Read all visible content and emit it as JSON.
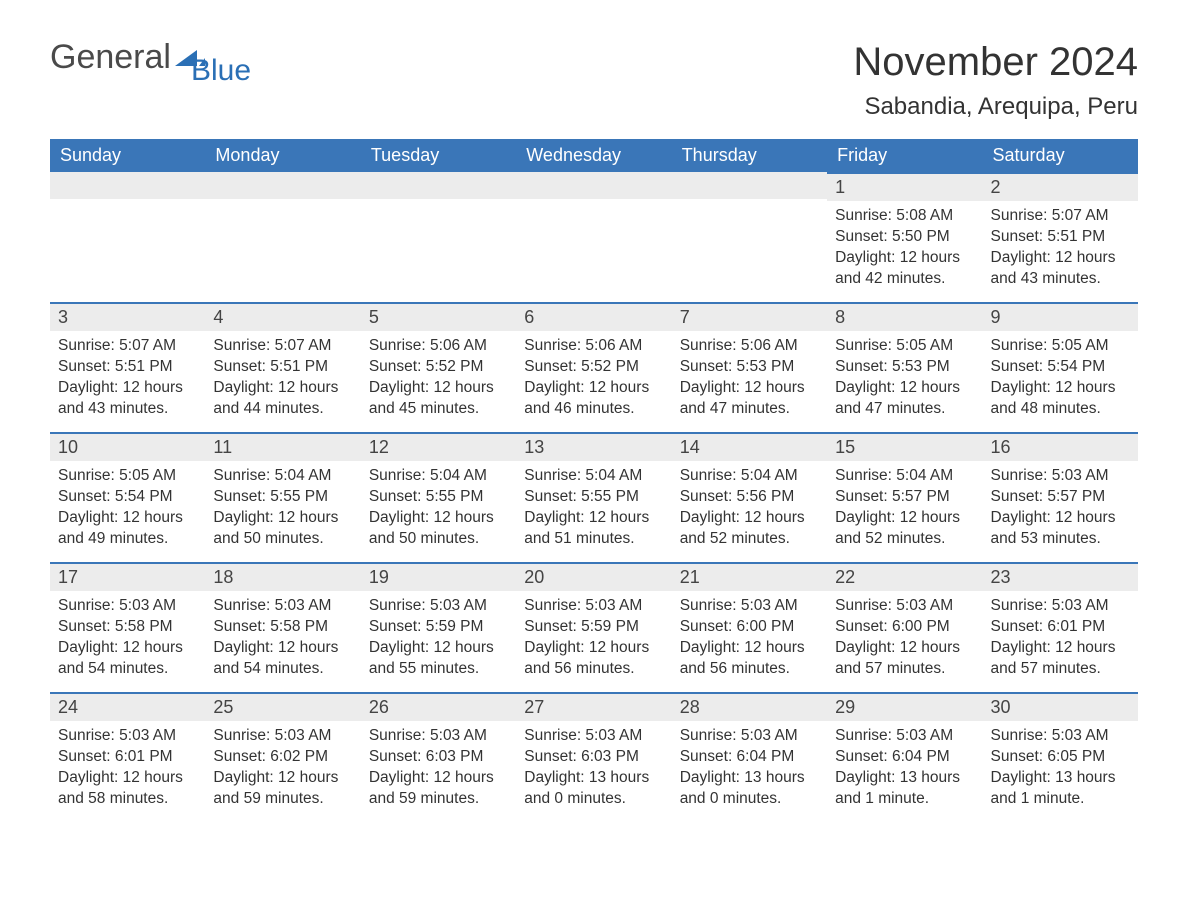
{
  "logo": {
    "general": "General",
    "blue": "Blue"
  },
  "header": {
    "month_title": "November 2024",
    "location": "Sabandia, Arequipa, Peru"
  },
  "colors": {
    "brand_blue": "#3a76b8",
    "header_row_bg": "#ececec",
    "text": "#333333",
    "bg": "#ffffff"
  },
  "weekday_labels": [
    "Sunday",
    "Monday",
    "Tuesday",
    "Wednesday",
    "Thursday",
    "Friday",
    "Saturday"
  ],
  "weeks": [
    [
      null,
      null,
      null,
      null,
      null,
      {
        "day": "1",
        "sunrise": "Sunrise: 5:08 AM",
        "sunset": "Sunset: 5:50 PM",
        "daylight": "Daylight: 12 hours and 42 minutes."
      },
      {
        "day": "2",
        "sunrise": "Sunrise: 5:07 AM",
        "sunset": "Sunset: 5:51 PM",
        "daylight": "Daylight: 12 hours and 43 minutes."
      }
    ],
    [
      {
        "day": "3",
        "sunrise": "Sunrise: 5:07 AM",
        "sunset": "Sunset: 5:51 PM",
        "daylight": "Daylight: 12 hours and 43 minutes."
      },
      {
        "day": "4",
        "sunrise": "Sunrise: 5:07 AM",
        "sunset": "Sunset: 5:51 PM",
        "daylight": "Daylight: 12 hours and 44 minutes."
      },
      {
        "day": "5",
        "sunrise": "Sunrise: 5:06 AM",
        "sunset": "Sunset: 5:52 PM",
        "daylight": "Daylight: 12 hours and 45 minutes."
      },
      {
        "day": "6",
        "sunrise": "Sunrise: 5:06 AM",
        "sunset": "Sunset: 5:52 PM",
        "daylight": "Daylight: 12 hours and 46 minutes."
      },
      {
        "day": "7",
        "sunrise": "Sunrise: 5:06 AM",
        "sunset": "Sunset: 5:53 PM",
        "daylight": "Daylight: 12 hours and 47 minutes."
      },
      {
        "day": "8",
        "sunrise": "Sunrise: 5:05 AM",
        "sunset": "Sunset: 5:53 PM",
        "daylight": "Daylight: 12 hours and 47 minutes."
      },
      {
        "day": "9",
        "sunrise": "Sunrise: 5:05 AM",
        "sunset": "Sunset: 5:54 PM",
        "daylight": "Daylight: 12 hours and 48 minutes."
      }
    ],
    [
      {
        "day": "10",
        "sunrise": "Sunrise: 5:05 AM",
        "sunset": "Sunset: 5:54 PM",
        "daylight": "Daylight: 12 hours and 49 minutes."
      },
      {
        "day": "11",
        "sunrise": "Sunrise: 5:04 AM",
        "sunset": "Sunset: 5:55 PM",
        "daylight": "Daylight: 12 hours and 50 minutes."
      },
      {
        "day": "12",
        "sunrise": "Sunrise: 5:04 AM",
        "sunset": "Sunset: 5:55 PM",
        "daylight": "Daylight: 12 hours and 50 minutes."
      },
      {
        "day": "13",
        "sunrise": "Sunrise: 5:04 AM",
        "sunset": "Sunset: 5:55 PM",
        "daylight": "Daylight: 12 hours and 51 minutes."
      },
      {
        "day": "14",
        "sunrise": "Sunrise: 5:04 AM",
        "sunset": "Sunset: 5:56 PM",
        "daylight": "Daylight: 12 hours and 52 minutes."
      },
      {
        "day": "15",
        "sunrise": "Sunrise: 5:04 AM",
        "sunset": "Sunset: 5:57 PM",
        "daylight": "Daylight: 12 hours and 52 minutes."
      },
      {
        "day": "16",
        "sunrise": "Sunrise: 5:03 AM",
        "sunset": "Sunset: 5:57 PM",
        "daylight": "Daylight: 12 hours and 53 minutes."
      }
    ],
    [
      {
        "day": "17",
        "sunrise": "Sunrise: 5:03 AM",
        "sunset": "Sunset: 5:58 PM",
        "daylight": "Daylight: 12 hours and 54 minutes."
      },
      {
        "day": "18",
        "sunrise": "Sunrise: 5:03 AM",
        "sunset": "Sunset: 5:58 PM",
        "daylight": "Daylight: 12 hours and 54 minutes."
      },
      {
        "day": "19",
        "sunrise": "Sunrise: 5:03 AM",
        "sunset": "Sunset: 5:59 PM",
        "daylight": "Daylight: 12 hours and 55 minutes."
      },
      {
        "day": "20",
        "sunrise": "Sunrise: 5:03 AM",
        "sunset": "Sunset: 5:59 PM",
        "daylight": "Daylight: 12 hours and 56 minutes."
      },
      {
        "day": "21",
        "sunrise": "Sunrise: 5:03 AM",
        "sunset": "Sunset: 6:00 PM",
        "daylight": "Daylight: 12 hours and 56 minutes."
      },
      {
        "day": "22",
        "sunrise": "Sunrise: 5:03 AM",
        "sunset": "Sunset: 6:00 PM",
        "daylight": "Daylight: 12 hours and 57 minutes."
      },
      {
        "day": "23",
        "sunrise": "Sunrise: 5:03 AM",
        "sunset": "Sunset: 6:01 PM",
        "daylight": "Daylight: 12 hours and 57 minutes."
      }
    ],
    [
      {
        "day": "24",
        "sunrise": "Sunrise: 5:03 AM",
        "sunset": "Sunset: 6:01 PM",
        "daylight": "Daylight: 12 hours and 58 minutes."
      },
      {
        "day": "25",
        "sunrise": "Sunrise: 5:03 AM",
        "sunset": "Sunset: 6:02 PM",
        "daylight": "Daylight: 12 hours and 59 minutes."
      },
      {
        "day": "26",
        "sunrise": "Sunrise: 5:03 AM",
        "sunset": "Sunset: 6:03 PM",
        "daylight": "Daylight: 12 hours and 59 minutes."
      },
      {
        "day": "27",
        "sunrise": "Sunrise: 5:03 AM",
        "sunset": "Sunset: 6:03 PM",
        "daylight": "Daylight: 13 hours and 0 minutes."
      },
      {
        "day": "28",
        "sunrise": "Sunrise: 5:03 AM",
        "sunset": "Sunset: 6:04 PM",
        "daylight": "Daylight: 13 hours and 0 minutes."
      },
      {
        "day": "29",
        "sunrise": "Sunrise: 5:03 AM",
        "sunset": "Sunset: 6:04 PM",
        "daylight": "Daylight: 13 hours and 1 minute."
      },
      {
        "day": "30",
        "sunrise": "Sunrise: 5:03 AM",
        "sunset": "Sunset: 6:05 PM",
        "daylight": "Daylight: 13 hours and 1 minute."
      }
    ]
  ]
}
